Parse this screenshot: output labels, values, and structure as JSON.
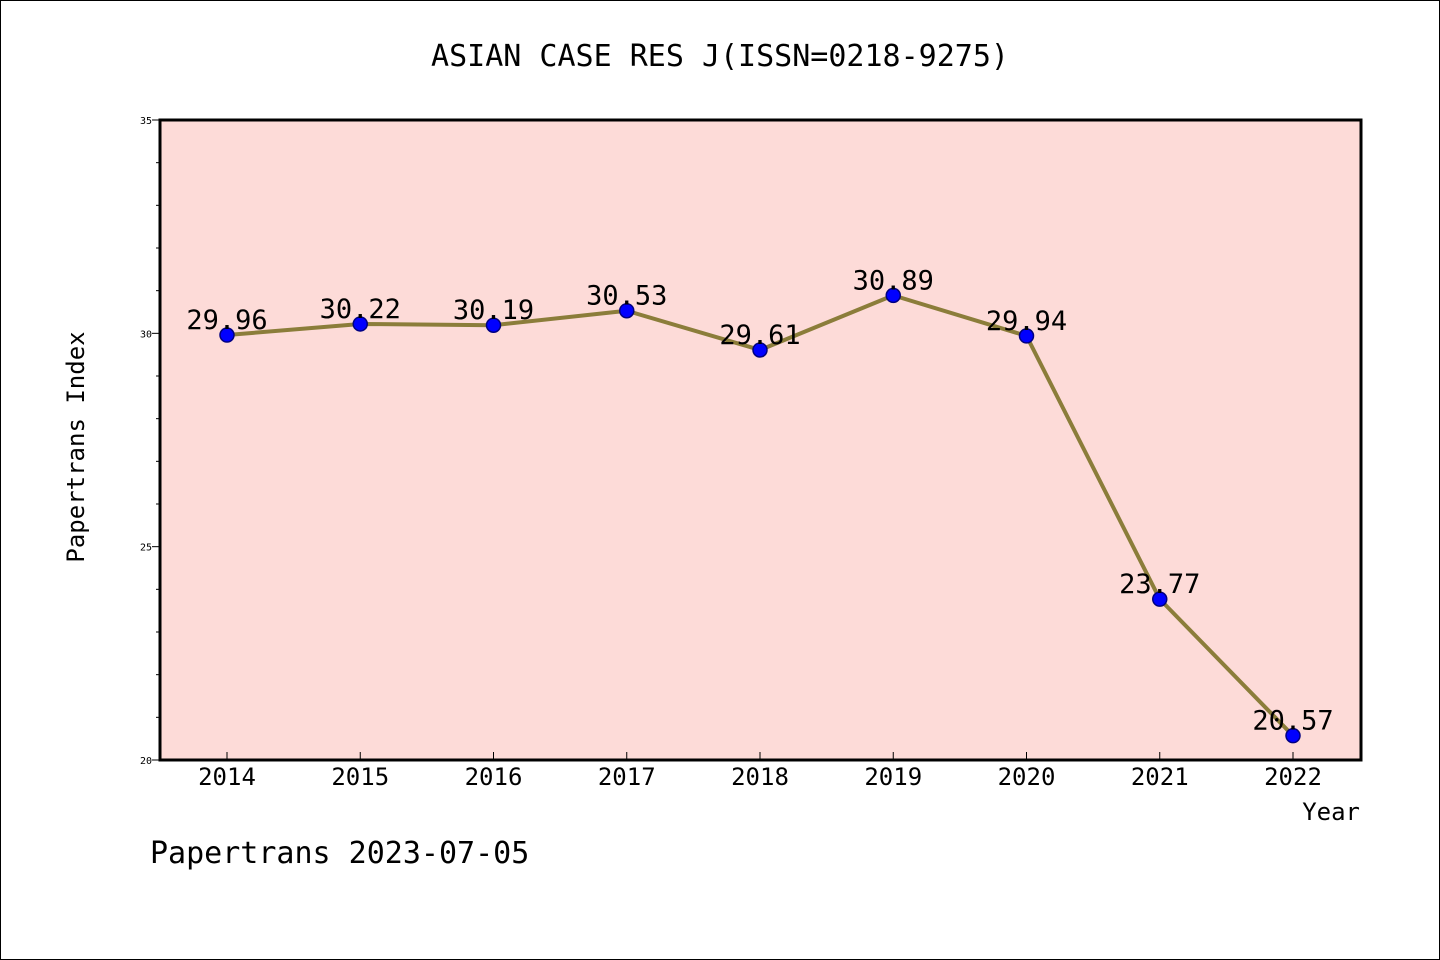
{
  "chart_data": {
    "type": "line",
    "title": "ASIAN CASE RES J(ISSN=0218-9275)",
    "xlabel": "Year",
    "ylabel": "Papertrans Index",
    "categories": [
      "2014",
      "2015",
      "2016",
      "2017",
      "2018",
      "2019",
      "2020",
      "2021",
      "2022"
    ],
    "values": [
      29.96,
      30.22,
      30.19,
      30.53,
      29.61,
      30.89,
      29.94,
      23.77,
      20.57
    ],
    "value_labels": [
      "29.96",
      "30.22",
      "30.19",
      "30.53",
      "29.61",
      "30.89",
      "29.94",
      "23.77",
      "20.57"
    ],
    "ylim": [
      20,
      35
    ],
    "yticks": [
      "20",
      "25",
      "30",
      "35"
    ],
    "grid": false,
    "legend": "none",
    "colors": {
      "plot_background": "#fddbd8",
      "line": "#8b7d3a",
      "marker": "#0000ff",
      "marker_edge": "#000080"
    }
  },
  "footer": "Papertrans 2023-07-05"
}
